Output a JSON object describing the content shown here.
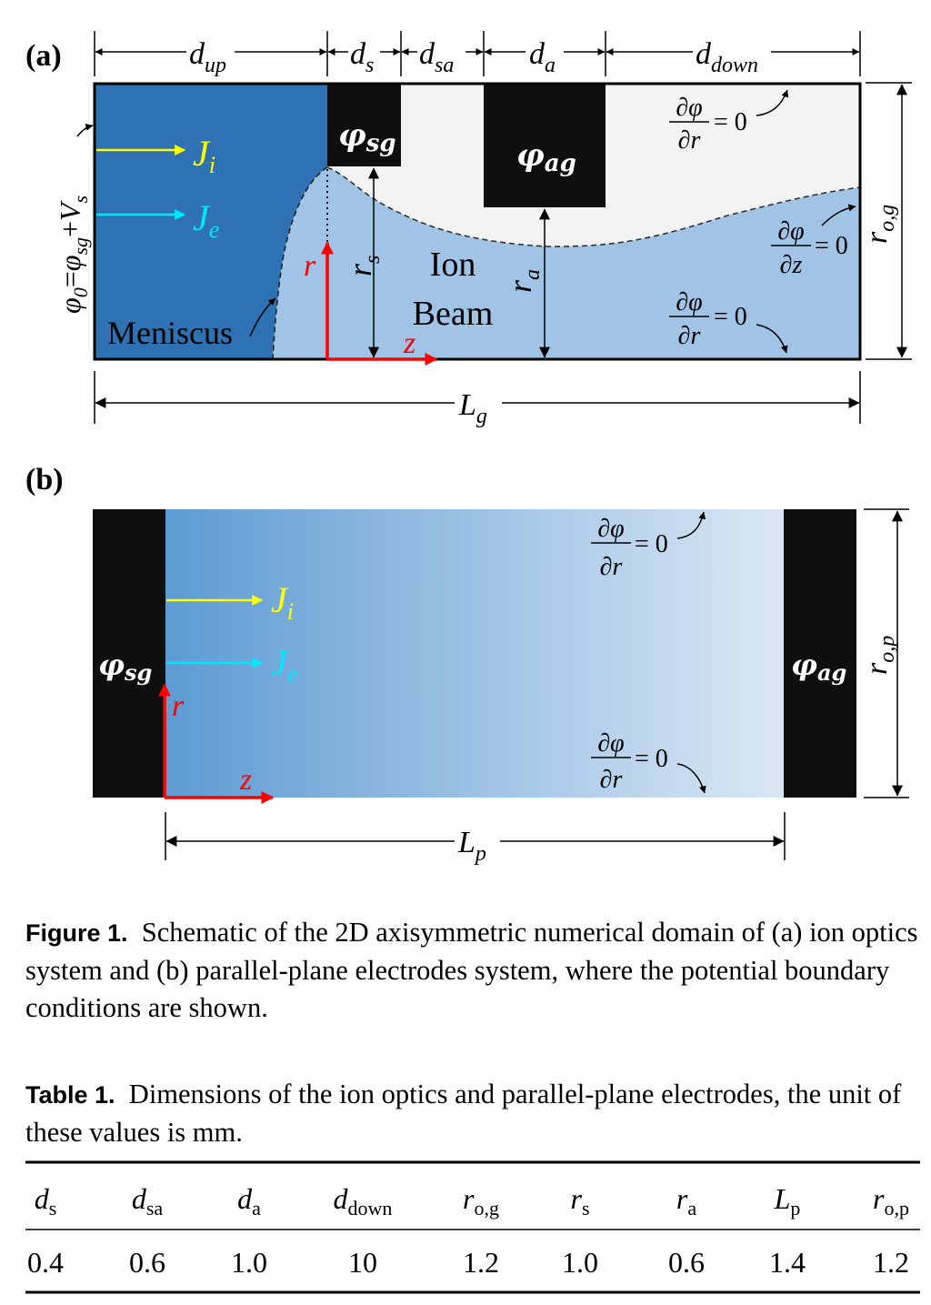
{
  "figure": {
    "panel_a": {
      "label": "(a)",
      "dims": {
        "d_up": "d",
        "d_up_sub": "up",
        "d_s": "d",
        "d_s_sub": "s",
        "d_sa": "d",
        "d_sa_sub": "sa",
        "d_a": "d",
        "d_a_sub": "a",
        "d_down": "d",
        "d_down_sub": "down"
      },
      "left_bc": {
        "phi0": "φ",
        "phi0_sub": "0",
        "eq": "=",
        "phisg": "φ",
        "phisg_sub": "sg",
        "plus": "+",
        "vs": "V",
        "vs_sub": "s"
      },
      "phi_sg": {
        "main": "φ",
        "sub": "sg"
      },
      "phi_ag": {
        "main": "φ",
        "sub": "ag"
      },
      "j_i": {
        "main": "J",
        "sub": "i"
      },
      "j_e": {
        "main": "J",
        "sub": "e"
      },
      "meniscus": "Meniscus",
      "ion_beam": [
        "Ion",
        "Beam"
      ],
      "r_s": {
        "main": "r",
        "sub": "s"
      },
      "r_a": {
        "main": "r",
        "sub": "a"
      },
      "r_og": {
        "main": "r",
        "sub": "o,g"
      },
      "L_g": {
        "main": "L",
        "sub": "g"
      },
      "axis_r": "r",
      "axis_z": "z",
      "bc_top": {
        "num": "∂φ",
        "den": "∂r",
        "rhs": "= 0"
      },
      "bc_right": {
        "num": "∂φ",
        "den": "∂z",
        "rhs": "= 0"
      },
      "bc_bottom": {
        "num": "∂φ",
        "den": "∂r",
        "rhs": "= 0"
      }
    },
    "panel_b": {
      "label": "(b)",
      "phi_sg": {
        "main": "φ",
        "sub": "sg"
      },
      "phi_ag": {
        "main": "φ",
        "sub": "ag"
      },
      "j_i": {
        "main": "J",
        "sub": "i"
      },
      "j_e": {
        "main": "J",
        "sub": "e"
      },
      "r_op": {
        "main": "r",
        "sub": "o,p"
      },
      "L_p": {
        "main": "L",
        "sub": "p"
      },
      "axis_r": "r",
      "axis_z": "z",
      "bc_top": {
        "num": "∂φ",
        "den": "∂r",
        "rhs": "= 0"
      },
      "bc_bottom": {
        "num": "∂φ",
        "den": "∂r",
        "rhs": "= 0"
      }
    },
    "colors": {
      "meniscus_region": "#2f72b4",
      "beam_region": "#a0c3e6",
      "gap_region": "#f3f3f3",
      "electrode": "#0f0f0f",
      "j_i": "#ffff00",
      "j_e": "#00e8ff",
      "axes": "#ff0000"
    }
  },
  "figure_caption": {
    "label": "Figure 1.",
    "text": "Schematic of the 2D axisymmetric numerical domain of (a) ion optics system and (b) parallel-plane electrodes system, where the potential boundary conditions are shown."
  },
  "table_caption": {
    "label": "Table 1.",
    "text": "Dimensions of the ion optics and parallel-plane electrodes, the unit of these values is mm."
  },
  "table": {
    "headers": [
      {
        "main": "d",
        "sub": "s"
      },
      {
        "main": "d",
        "sub": "sa"
      },
      {
        "main": "d",
        "sub": "a"
      },
      {
        "main": "d",
        "sub": "down"
      },
      {
        "main": "r",
        "sub": "o,g"
      },
      {
        "main": "r",
        "sub": "s"
      },
      {
        "main": "r",
        "sub": "a"
      },
      {
        "main": "L",
        "sub": "p"
      },
      {
        "main": "r",
        "sub": "o,p"
      }
    ],
    "values": [
      "0.4",
      "0.6",
      "1.0",
      "10",
      "1.2",
      "1.0",
      "0.6",
      "1.4",
      "1.2"
    ]
  }
}
